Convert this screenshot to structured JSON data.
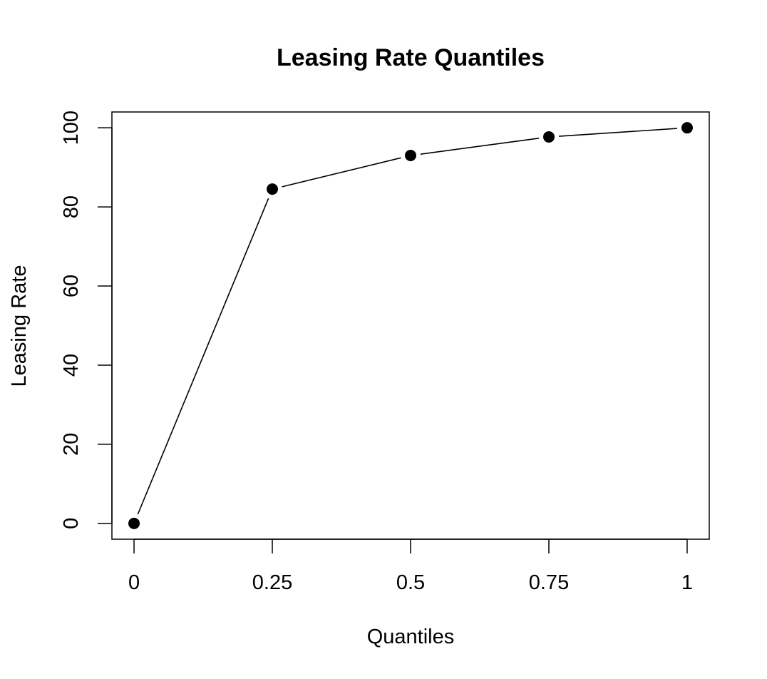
{
  "chart_data": {
    "type": "line",
    "title": "Leasing Rate Quantiles",
    "xlabel": "Quantiles",
    "ylabel": "Leasing Rate",
    "x": [
      0,
      0.25,
      0.5,
      0.75,
      1
    ],
    "x_tick_labels": [
      "0",
      "0.25",
      "0.5",
      "0.75",
      "1"
    ],
    "y_ticks": [
      0,
      20,
      40,
      60,
      80,
      100
    ],
    "y_tick_labels": [
      "0",
      "20",
      "40",
      "60",
      "80",
      "100"
    ],
    "series": [
      {
        "values": [
          0,
          84.5,
          93,
          97.7,
          100
        ]
      }
    ],
    "xlim": [
      -0.04,
      1.04
    ],
    "ylim": [
      -4,
      104
    ],
    "grid": false,
    "colors": {
      "line": "#000000",
      "point": "#000000",
      "frame": "#000000"
    }
  }
}
